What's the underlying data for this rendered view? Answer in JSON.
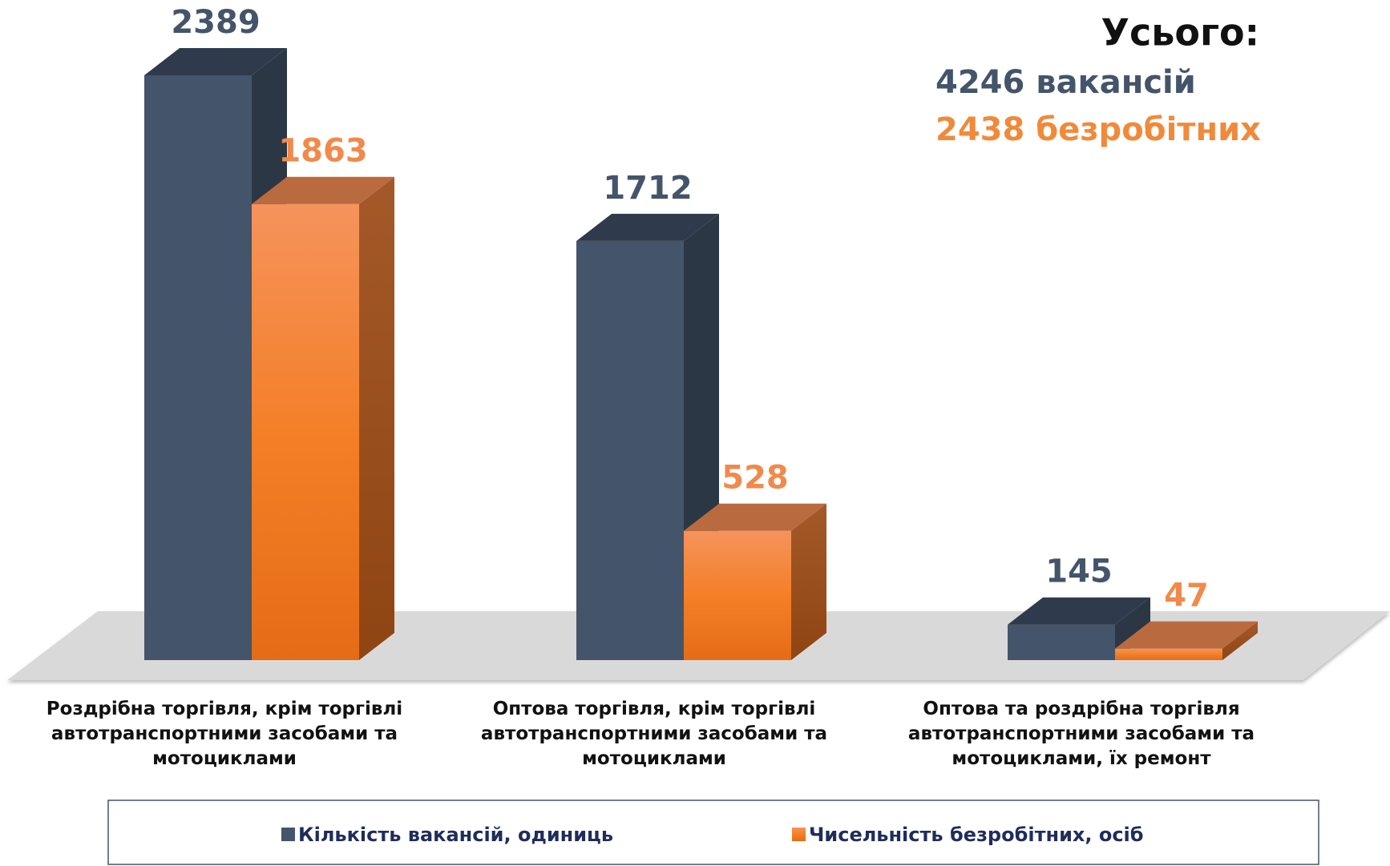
{
  "chart_data": {
    "type": "bar3d",
    "categories": [
      "Роздрібна торгівля, крім торгівлі автотранспортними засобами та мотоциклами",
      "Оптова торгівля, крім торгівлі автотранспортними засобами та мотоциклами",
      "Оптова та роздрібна торгівля автотранспортними засобами та мотоциклами, їх ремонт"
    ],
    "series": [
      {
        "name": "Кількість вакансій, одиниць",
        "color": "#44546a",
        "values": [
          2389,
          1712,
          145
        ]
      },
      {
        "name": "Чисельність безробітних, осіб",
        "color": "#f28433",
        "values": [
          1863,
          528,
          47
        ]
      }
    ],
    "annotations": {
      "title": "Усього:",
      "lines": [
        "4246 вакансій",
        "2438 безробітних"
      ]
    },
    "legend": "bottom"
  }
}
